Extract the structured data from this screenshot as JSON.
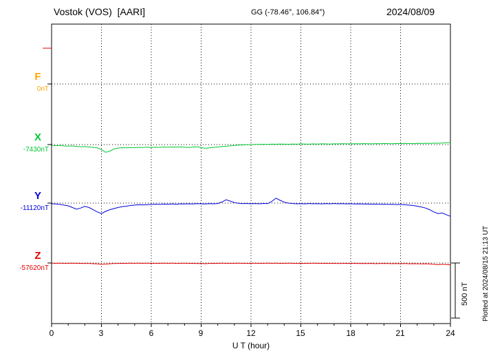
{
  "header": {
    "title": "Vostok (VOS)  [AARI]",
    "coords": "GG (-78.46°, 106.84°)",
    "date": "2024/08/09"
  },
  "footer": {
    "plotted_at": "Plotted at 2024/08/15 21:13 UT"
  },
  "chart_data": {
    "type": "line",
    "title": "Vostok (VOS) [AARI] magnetogram 2024/08/09",
    "xlabel": "U T (hour)",
    "xlim": [
      0,
      24
    ],
    "x_ticks": [
      0,
      3,
      6,
      9,
      12,
      15,
      18,
      21,
      24
    ],
    "x_step_hours": 0.25,
    "grid": "dotted vertical lines every 3 h, dotted horizontal baseline per component",
    "legend_position": "left",
    "scale_bar": {
      "label": "500 nT",
      "nT": 500
    },
    "series": [
      {
        "name": "F",
        "baseline_label": "0nT",
        "baseline_nT": 0,
        "color": "#FFA500",
        "visible": false,
        "x_step_hours": 24,
        "values_nT": [
          0,
          0
        ]
      },
      {
        "name": "X",
        "baseline_label": "-7430nT",
        "baseline_nT": -7430,
        "color": "#00C832",
        "visible": true,
        "values_nT": [
          -8,
          -10,
          -9,
          -12,
          -14,
          -12,
          -16,
          -20,
          -18,
          -22,
          -25,
          -30,
          -45,
          -70,
          -60,
          -40,
          -32,
          -28,
          -30,
          -26,
          -28,
          -25,
          -27,
          -24,
          -26,
          -24,
          -25,
          -22,
          -24,
          -22,
          -23,
          -21,
          -24,
          -26,
          -22,
          -20,
          -28,
          -34,
          -30,
          -25,
          -22,
          -18,
          -15,
          -12,
          -8,
          -5,
          -3,
          -2,
          0,
          2,
          1,
          3,
          2,
          4,
          3,
          5,
          4,
          3,
          5,
          4,
          6,
          5,
          4,
          6,
          5,
          7,
          6,
          5,
          7,
          6,
          8,
          7,
          6,
          8,
          7,
          9,
          8,
          7,
          9,
          8,
          10,
          9,
          8,
          10,
          9,
          11,
          10,
          9,
          11,
          10,
          12,
          11,
          13,
          12,
          14,
          16,
          18
        ]
      },
      {
        "name": "Y",
        "baseline_label": "-11120nT",
        "baseline_nT": -11120,
        "color": "#0000DD",
        "visible": true,
        "values_nT": [
          -6,
          -8,
          -12,
          -18,
          -25,
          -40,
          -55,
          -45,
          -30,
          -40,
          -60,
          -80,
          -95,
          -75,
          -60,
          -50,
          -40,
          -32,
          -28,
          -22,
          -18,
          -15,
          -16,
          -14,
          -12,
          -10,
          -12,
          -9,
          -10,
          -8,
          -10,
          -7,
          -8,
          -6,
          -8,
          -5,
          -6,
          -8,
          -5,
          -6,
          -4,
          10,
          30,
          18,
          5,
          -2,
          -5,
          -3,
          -6,
          -4,
          -6,
          -3,
          -5,
          15,
          45,
          25,
          8,
          0,
          -4,
          -6,
          -5,
          -7,
          -4,
          -6,
          -5,
          -7,
          -5,
          -6,
          -4,
          -6,
          -5,
          -7,
          -6,
          -8,
          -7,
          -9,
          -8,
          -10,
          -9,
          -11,
          -10,
          -12,
          -11,
          -13,
          -12,
          -15,
          -18,
          -22,
          -28,
          -35,
          -45,
          -60,
          -80,
          -95,
          -90,
          -105,
          -120
        ]
      },
      {
        "name": "Z",
        "baseline_label": "-57620nT",
        "baseline_nT": -57620,
        "color": "#E00000",
        "visible": true,
        "values_nT": [
          -2,
          -3,
          -2,
          -4,
          -3,
          -2,
          -4,
          -3,
          -5,
          -4,
          -6,
          -8,
          -12,
          -10,
          -7,
          -5,
          -4,
          -3,
          -4,
          -2,
          -3,
          -2,
          -3,
          -2,
          -3,
          -4,
          -3,
          -2,
          -3,
          -2,
          -4,
          -3,
          -2,
          -4,
          -3,
          -5,
          -4,
          -6,
          -4,
          -3,
          -4,
          -2,
          -3,
          -4,
          -3,
          -2,
          -3,
          -4,
          -3,
          -2,
          -4,
          -3,
          -2,
          -3,
          -2,
          -4,
          -3,
          -2,
          -3,
          -4,
          -3,
          -4,
          -3,
          -2,
          -3,
          -4,
          -3,
          -4,
          -3,
          -5,
          -4,
          -3,
          -4,
          -3,
          -5,
          -4,
          -5,
          -4,
          -6,
          -5,
          -4,
          -5,
          -6,
          -5,
          -6,
          -5,
          -7,
          -6,
          -7,
          -8,
          -7,
          -9,
          -12,
          -15,
          -12,
          -14,
          -16
        ]
      }
    ]
  }
}
